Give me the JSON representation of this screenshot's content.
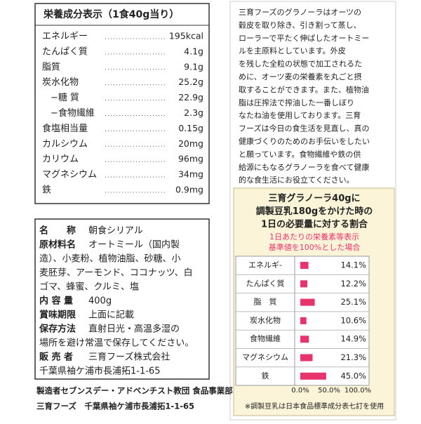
{
  "nutrition": {
    "title": "栄養成分表示（1食40g当り）",
    "rows": [
      [
        "エネルギー",
        "195kcal"
      ],
      [
        "たんぱく質",
        "4.1g"
      ],
      [
        "脂質",
        "9.1g"
      ],
      [
        "炭水化物",
        "25.2g"
      ],
      [
        "−糖 質",
        "22.9g"
      ],
      [
        "−食物繊維",
        "2.3g"
      ],
      [
        "食塩相当量",
        "0.15g"
      ],
      [
        "カルシウム",
        "20mg"
      ],
      [
        "カリウム",
        "96mg"
      ],
      [
        "マグネシウム",
        "34mg"
      ],
      [
        "鉄",
        "0.9mg"
      ]
    ]
  },
  "product": {
    "rows": [
      {
        "label": "名　　称",
        "lines": [
          "朝食シリアル"
        ]
      },
      {
        "label": "原材料名",
        "lines": [
          "オートミール（国内製",
          "造）、小麦粉、植物油脂、砂糖、小",
          "麦胚芽、アーモンド、ココナッツ、白",
          "ゴマ、蜂蜜、クルミ、塩"
        ]
      },
      {
        "label": "内 容 量",
        "lines": [
          "400g"
        ]
      },
      {
        "label": "賞味期限",
        "lines": [
          "上面に記載"
        ]
      },
      {
        "label": "保存方法",
        "lines": [
          "直射日光・高温多湿の",
          "場所を避け常温で保存してください。"
        ]
      },
      {
        "label": "販 売 者",
        "lines": [
          "三育フーズ株式会社",
          "千葉県袖ケ浦市長浦拓1-1-65"
        ]
      }
    ]
  },
  "footer": [
    "製造者セブンスデー・アドベンチスト教団 食品事業部",
    "三育フーズ　千葉県袖ケ浦市長浦拓1-1-65"
  ],
  "description": [
    "三育フーズのグラノーラはオーツの",
    "穀皮を取り除き、引き割って蒸し、",
    "ローラーで平たく伸ばしたオートミー",
    "ルを主原料としています。外皮",
    "を残した全粒の状態で加工されるた",
    "めに、オーツ麦の栄養素を丸ごと摂",
    "取することができます。また、植物油",
    "脂は圧搾法で搾油した一番しぼり",
    "なたね油を使用しております。三育",
    "フーズは今日の食生活を見直し、真の",
    "健康づくりのためのお手伝いをしたい",
    "と願っています。食物繊維や鉄の供",
    "給源にもなるグラノーラを食べて健康",
    "的な食生活にお役立てください。"
  ],
  "chart": {
    "title": [
      "三育グラノーラ40gに",
      "調製豆乳180gをかけた時の",
      "1日の必要量に対する割合"
    ],
    "subtitle": [
      "1日あたりの栄養素等表示",
      "基準値を100%とした場合"
    ],
    "categories": [
      "エネルギ-",
      "たんぱく質",
      "脂　質",
      "炭水化物",
      "食物繊維",
      "マグネシウム",
      "鉄"
    ],
    "values": [
      14.1,
      12.2,
      25.1,
      10.6,
      14.9,
      21.3,
      45.0
    ],
    "value_labels": [
      "14.1%",
      "12.2%",
      "25.1%",
      "10.6%",
      "14.9%",
      "21.3%",
      "45.0%"
    ],
    "color": "#e8336d",
    "xlim": [
      0,
      100
    ],
    "xticks": [
      {
        "value": 0,
        "label": "0.0%"
      },
      {
        "value": 50,
        "label": "50.0%"
      },
      {
        "value": 100,
        "label": "100.0%"
      }
    ],
    "note": "※調製豆乳は日本食品標準成分表七訂を使用"
  }
}
